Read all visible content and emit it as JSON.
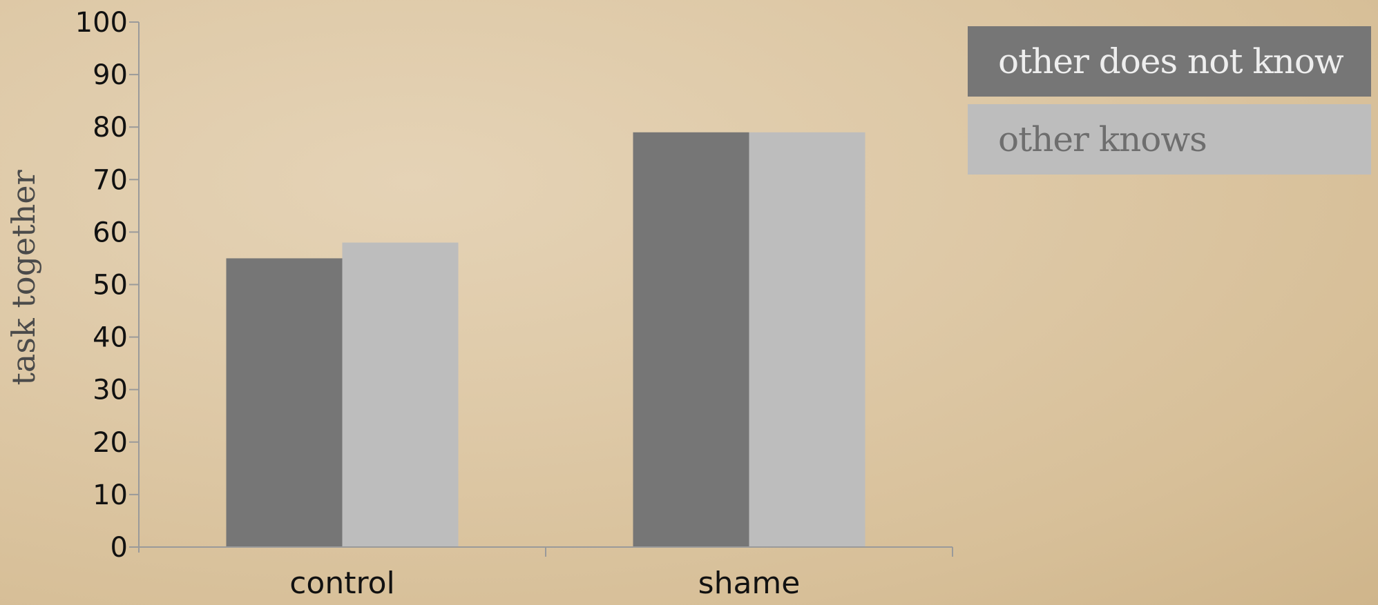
{
  "chart_data": {
    "type": "bar",
    "title": "",
    "xlabel": "",
    "ylabel": "task together",
    "ylim": [
      0,
      100
    ],
    "yticks": [
      0,
      10,
      20,
      30,
      40,
      50,
      60,
      70,
      80,
      90,
      100
    ],
    "categories": [
      "control",
      "shame"
    ],
    "series": [
      {
        "name": "other does not know",
        "values": [
          55,
          79
        ],
        "color": "#767676"
      },
      {
        "name": "other knows",
        "values": [
          58,
          79
        ],
        "color": "#bdbdbd"
      }
    ],
    "grid": false,
    "legend_position": "top-right",
    "colors": {
      "axis": "#9a9a9a",
      "tick_text": "#111111",
      "ylabel_text": "#4a4a4a",
      "legend_text_dark_bg": "#eeeeee",
      "legend_text_light_bg": "#6e6e6e"
    }
  }
}
